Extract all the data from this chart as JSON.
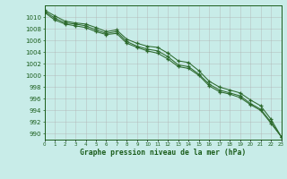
{
  "x": [
    0,
    1,
    2,
    3,
    4,
    5,
    6,
    7,
    8,
    9,
    10,
    11,
    12,
    13,
    14,
    15,
    16,
    17,
    18,
    19,
    20,
    21,
    22,
    23
  ],
  "line1": [
    1011.2,
    1010.2,
    1009.3,
    1009.0,
    1008.8,
    1008.2,
    1007.5,
    1007.8,
    1006.2,
    1005.5,
    1005.0,
    1004.8,
    1003.8,
    1002.5,
    1002.2,
    1000.8,
    999.0,
    998.0,
    997.5,
    997.0,
    995.8,
    994.8,
    992.5,
    989.5
  ],
  "line2": [
    1011.0,
    1009.8,
    1009.0,
    1008.8,
    1008.5,
    1007.8,
    1007.2,
    1007.5,
    1005.8,
    1005.0,
    1004.5,
    1004.2,
    1003.2,
    1001.8,
    1001.5,
    1000.2,
    998.5,
    997.5,
    997.0,
    996.5,
    995.2,
    994.2,
    992.0,
    989.5
  ],
  "line3": [
    1010.8,
    1009.5,
    1008.8,
    1008.5,
    1008.2,
    1007.5,
    1007.0,
    1007.2,
    1005.5,
    1004.8,
    1004.2,
    1003.8,
    1002.8,
    1001.5,
    1001.2,
    1000.0,
    998.2,
    997.2,
    996.8,
    996.2,
    995.0,
    994.0,
    991.8,
    989.5
  ],
  "line_color": "#2d6a2d",
  "bg_color": "#c8ece8",
  "grid_color": "#b0b0b0",
  "ylabel_values": [
    990,
    992,
    994,
    996,
    998,
    1000,
    1002,
    1004,
    1006,
    1008,
    1010
  ],
  "ylim": [
    989.0,
    1012.0
  ],
  "xlim": [
    0,
    23
  ],
  "xlabel": "Graphe pression niveau de la mer (hPa)",
  "xlabel_color": "#1a5c1a",
  "tick_color": "#1a5c1a",
  "figsize": [
    3.2,
    2.0
  ],
  "dpi": 100
}
